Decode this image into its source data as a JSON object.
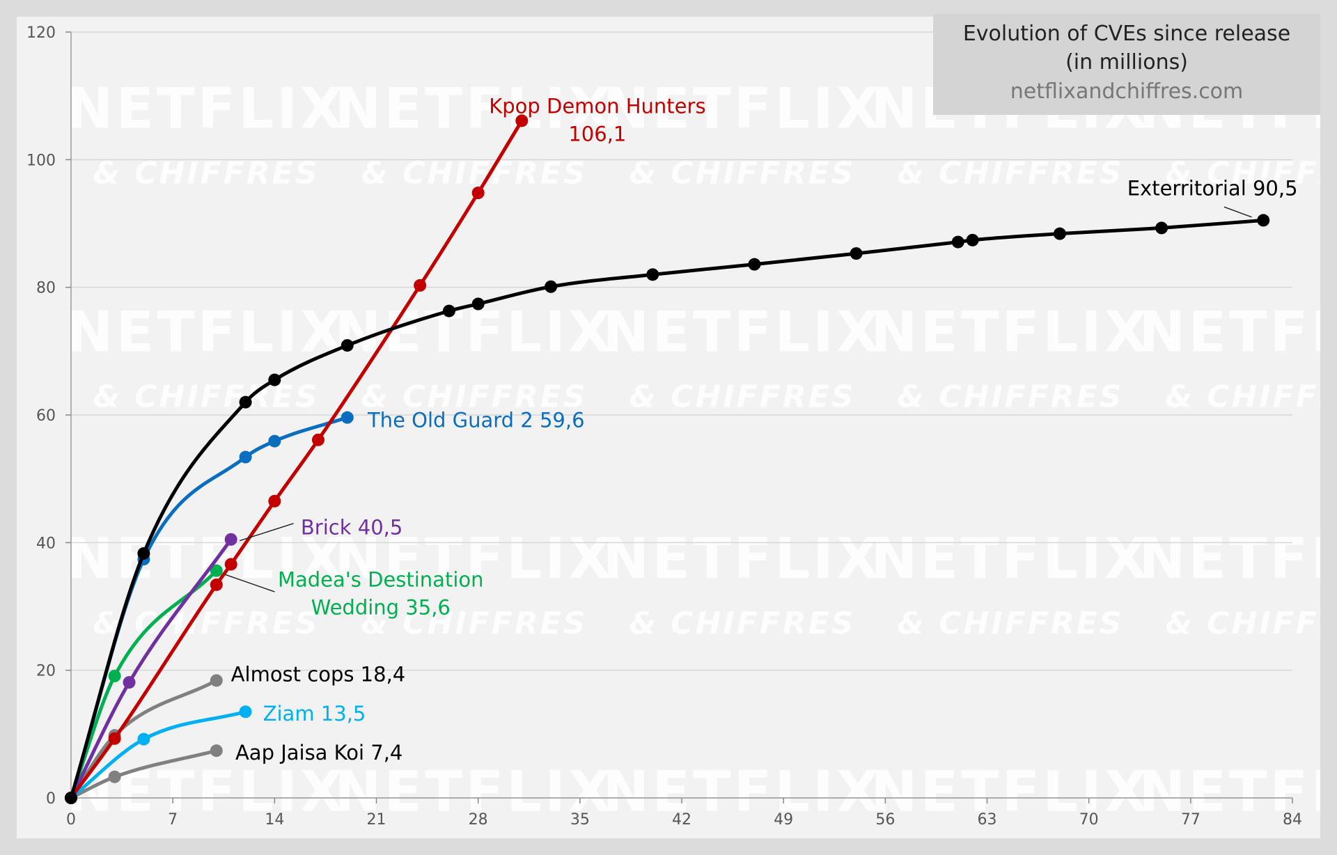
{
  "chart_data": {
    "type": "line",
    "title": "Evolution of CVEs since release",
    "subtitle": "(in millions)",
    "source": "netflixandchiffres.com",
    "watermark": [
      "NETFLIX",
      "& CHIFFRES"
    ],
    "xlabel": "",
    "ylabel": "",
    "xlim": [
      0,
      84
    ],
    "ylim": [
      0,
      120
    ],
    "x_ticks": [
      0,
      7,
      14,
      21,
      28,
      35,
      42,
      49,
      56,
      63,
      70,
      77,
      84
    ],
    "y_ticks": [
      0,
      20,
      40,
      60,
      80,
      100,
      120
    ],
    "grid": true,
    "legend": "none",
    "series": [
      {
        "label": "Exterritorial 90,5",
        "color": "#000000",
        "points": [
          [
            0,
            0
          ],
          [
            5,
            38.3
          ],
          [
            12,
            62
          ],
          [
            14,
            65.5
          ],
          [
            19,
            70.9
          ],
          [
            26,
            76.3
          ],
          [
            28,
            77.4
          ],
          [
            33,
            80.1
          ],
          [
            40,
            82
          ],
          [
            47,
            83.6
          ],
          [
            54,
            85.3
          ],
          [
            61,
            87.1
          ],
          [
            62,
            87.4
          ],
          [
            68,
            88.4
          ],
          [
            75,
            89.3
          ],
          [
            82,
            90.5
          ]
        ]
      },
      {
        "label": "Kpop Demon Hunters 106,1",
        "color": "#c30000",
        "points": [
          [
            0,
            0
          ],
          [
            3,
            9.3
          ],
          [
            10,
            33.4
          ],
          [
            11,
            36.6
          ],
          [
            14,
            46.5
          ],
          [
            17,
            56.1
          ],
          [
            24,
            80.3
          ],
          [
            28,
            94.8
          ],
          [
            31,
            106.1
          ]
        ]
      },
      {
        "label": "The Old Guard 2 59,6",
        "color": "#0a6ebe",
        "points": [
          [
            0,
            0
          ],
          [
            5,
            37.4
          ],
          [
            12,
            53.4
          ],
          [
            14,
            55.9
          ],
          [
            19,
            59.6
          ]
        ]
      },
      {
        "label": "Brick 40,5",
        "color": "#7030a0",
        "points": [
          [
            0,
            0
          ],
          [
            4,
            18.1
          ],
          [
            11,
            40.5
          ]
        ]
      },
      {
        "label": "Madea's Destination Wedding 35,6",
        "color": "#00b050",
        "points": [
          [
            0,
            0
          ],
          [
            3,
            19.1
          ],
          [
            10,
            35.6
          ]
        ]
      },
      {
        "label": "Almost cops 18,4",
        "color": "#808080",
        "points": [
          [
            0,
            0
          ],
          [
            3,
            9.8
          ],
          [
            10,
            18.4
          ]
        ]
      },
      {
        "label": "Ziam 13,5",
        "color": "#00b0f0",
        "points": [
          [
            0,
            0
          ],
          [
            5,
            9.2
          ],
          [
            12,
            13.5
          ]
        ]
      },
      {
        "label": "Aap Jaisa Koi 7,4",
        "color": "#808080",
        "points": [
          [
            0,
            0
          ],
          [
            3,
            3.3
          ],
          [
            10,
            7.4
          ]
        ]
      }
    ]
  }
}
